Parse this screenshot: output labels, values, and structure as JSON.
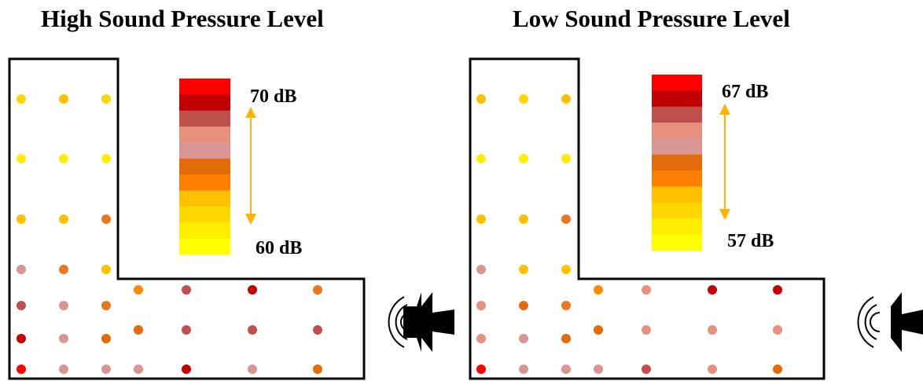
{
  "panels": [
    {
      "title": "High Sound Pressure Level",
      "max_label": "70 dB",
      "min_label": "60 dB",
      "scale_colors": [
        "#ff0000",
        "#c00000",
        "#c0504d",
        "#e6907e",
        "#d99694",
        "#e26b0a",
        "#ff8000",
        "#ffc000",
        "#ffd700",
        "#ffee00",
        "#ffff00"
      ],
      "dot_colors": [
        [
          "#ffd700",
          "#ffc000",
          "#ffd700"
        ],
        [
          "#ffee00",
          "#ffee00",
          "#ffee00"
        ],
        [
          "#ffc000",
          "#ffc000",
          "#e87722"
        ],
        [
          "#d99694",
          "#e87722",
          "#ffc000",
          "#ff8c00",
          "#c0504d",
          "#c00000",
          "#e87722"
        ],
        [
          "#c0504d",
          "#d99694",
          "#e87722",
          "#e26b0a",
          "#c0504d",
          "#c0504d",
          "#c0504d"
        ],
        [
          "#c00000",
          "#d99694",
          "#e26b0a"
        ],
        [
          "#ff0000",
          "#d99694",
          "#d99694",
          "#d99694",
          "#c00000",
          "#d99694",
          "#e26b0a"
        ]
      ]
    },
    {
      "title": "Low Sound Pressure Level",
      "max_label": "67 dB",
      "min_label": "57 dB",
      "scale_colors": [
        "#ff0000",
        "#c00000",
        "#c0504d",
        "#e6907e",
        "#d99694",
        "#e26b0a",
        "#ff8000",
        "#ffc000",
        "#ffd700",
        "#ffee00",
        "#ffff00"
      ],
      "dot_colors": [
        [
          "#ffc000",
          "#ffd700",
          "#ffc000"
        ],
        [
          "#ffee00",
          "#ffee00",
          "#ffee00"
        ],
        [
          "#ffc000",
          "#ffc000",
          "#e87722"
        ],
        [
          "#d99694",
          "#ffc000",
          "#ffc000",
          "#ff8c00",
          "#e6907e",
          "#c00000",
          "#c00000"
        ],
        [
          "#e6907e",
          "#e26b0a",
          "#e87722",
          "#e26b0a",
          "#e6907e",
          "#e6907e",
          "#e6907e"
        ],
        [
          "#e6907e",
          "#d99694",
          "#e26b0a"
        ],
        [
          "#ff0000",
          "#d99694",
          "#d99694",
          "#d99694",
          "#c0504d",
          "#e6907e",
          "#e26b0a"
        ]
      ]
    }
  ],
  "speaker_icon": "speaker-icon",
  "arrow_color": "#ffb300",
  "outline_color": "#000000"
}
